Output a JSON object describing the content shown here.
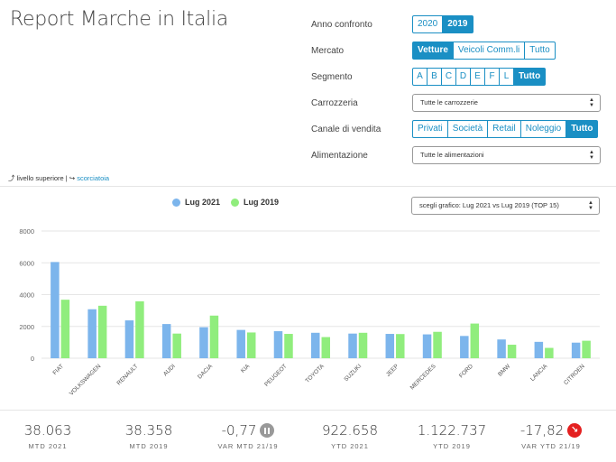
{
  "page": {
    "title": "Report Marche in Italia"
  },
  "filters": {
    "anno": {
      "label": "Anno confronto",
      "options": [
        "2020",
        "2019"
      ],
      "active": 1
    },
    "mercato": {
      "label": "Mercato",
      "options": [
        "Vetture",
        "Veicoli Comm.li",
        "Tutto"
      ],
      "active": 0
    },
    "segmento": {
      "label": "Segmento",
      "options": [
        "A",
        "B",
        "C",
        "D",
        "E",
        "F",
        "L",
        "Tutto"
      ],
      "active": 7
    },
    "carrozzeria": {
      "label": "Carrozzeria",
      "value": "Tutte le carrozzerie"
    },
    "canale": {
      "label": "Canale di vendita",
      "options": [
        "Privati",
        "Società",
        "Retail",
        "Noleggio",
        "Tutto"
      ],
      "active": 4
    },
    "alimentazione": {
      "label": "Alimentazione",
      "value": "Tutte le alimentazioni"
    }
  },
  "nav": {
    "up": "livello superiore",
    "sep": "|",
    "shortcut": "scorciatoia"
  },
  "chart_select": {
    "value": "scegli grafico: Lug 2021 vs Lug 2019 (TOP 15)"
  },
  "colors": {
    "accent": "#1a8fc4",
    "series_2021": "#7cb5ec",
    "series_2019": "#90ed7d",
    "negative": "#e42020",
    "neutral": "#999999"
  },
  "chart_data": {
    "type": "bar",
    "categories": [
      "FIAT",
      "VOLKSWAGEN",
      "RENAULT",
      "AUDI",
      "DACIA",
      "KIA",
      "PEUGEOT",
      "TOYOTA",
      "SUZUKI",
      "JEEP",
      "MERCEDES",
      "FORD",
      "BMW",
      "LANCIA",
      "CITROEN"
    ],
    "series": [
      {
        "name": "Lug 2021",
        "values": [
          6050,
          3080,
          2380,
          2150,
          1950,
          1780,
          1700,
          1600,
          1550,
          1530,
          1500,
          1400,
          1180,
          1030,
          980
        ]
      },
      {
        "name": "Lug 2019",
        "values": [
          3680,
          3300,
          3580,
          1550,
          2680,
          1620,
          1530,
          1330,
          1600,
          1520,
          1660,
          2180,
          850,
          650,
          1100
        ]
      }
    ],
    "yticks": [
      "0",
      "2000",
      "4000",
      "6000",
      "8000"
    ],
    "ylim": [
      0,
      8000
    ],
    "grid": true,
    "legend_position": "top-center"
  },
  "kpis": [
    {
      "value": "38.063",
      "label": "MTD 2021"
    },
    {
      "value": "38.358",
      "label": "MTD 2019"
    },
    {
      "value": "-0,77",
      "label": "VAR MTD 21/19",
      "icon": "pause-icon"
    },
    {
      "value": "922.658",
      "label": "YTD 2021"
    },
    {
      "value": "1.122.737",
      "label": "YTD 2019"
    },
    {
      "value": "-17,82",
      "label": "VAR YTD 21/19",
      "icon": "arrow-down-right-icon"
    }
  ]
}
